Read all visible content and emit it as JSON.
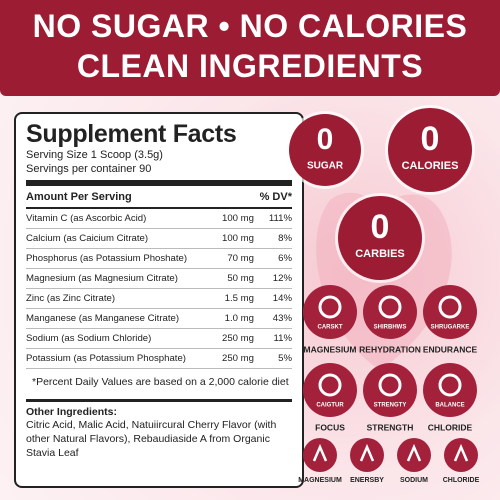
{
  "header": {
    "line1": "NO SUGAR • NO CALORIES",
    "line2": "CLEAN INGREDIENTS"
  },
  "facts": {
    "title": "Supplement Facts",
    "serving_size": "Serving Size 1 Scoop (3.5g)",
    "servings": "Servings per container 90",
    "column_amount": "Amount Per Serving",
    "column_dv": "% DV*",
    "rows": [
      [
        "Vitamin C (as Ascorbic Acid)",
        "100 mg",
        "111%"
      ],
      [
        "Calcium (as Caicium Citrate)",
        "100 mg",
        "8%"
      ],
      [
        "Phosphorus (as Potassium Phoshate)",
        "70 mg",
        "6%"
      ],
      [
        "Magnesium (as Magnesium Citrate)",
        "50 mg",
        "12%"
      ],
      [
        "Zinc (as Zinc Citrate)",
        "1.5 mg",
        "14%"
      ],
      [
        "Manganese (as Manganese Citrate)",
        "1.0 mg",
        "43%"
      ],
      [
        "Sodium (as Sodium Chloride)",
        "250 mg",
        "11%"
      ],
      [
        "Potassium (as Potassium Phosphate)",
        "250 mg",
        "5%"
      ]
    ],
    "footnote": "*Percent Daily Values are based on a 2,000 calorie diet",
    "other_title": "Other Ingredients:",
    "other_text": "Citric Acid, Malic Acid, Natuiircural Cherry Flavor (with other Natural Flavors), Rebaudiaside A from Organic Stavia Leaf"
  },
  "badges": [
    {
      "number": "0",
      "label": "SUGAR"
    },
    {
      "number": "0",
      "label": "CALORIES"
    },
    {
      "number": "0",
      "label": "CARBIES"
    }
  ],
  "icons": [
    {
      "icon_text": "CARSKT",
      "label": "MAGNESIUM"
    },
    {
      "icon_text": "SHIRBHWS",
      "label": "REHYDRATION"
    },
    {
      "icon_text": "SHRUGARKE",
      "label": "ENDURANCE"
    },
    {
      "icon_text": "CAIGTUR",
      "label": "FOCUS"
    },
    {
      "icon_text": "STRENGTY",
      "label": "STRENGTH"
    },
    {
      "icon_text": "BALANCE",
      "label": "CHLORIDE"
    }
  ],
  "small_icons": [
    {
      "label": "MAGNESIUM"
    },
    {
      "label": "ENERSBY"
    },
    {
      "label": "SODIUM"
    },
    {
      "label": "CHLORIDE"
    }
  ]
}
